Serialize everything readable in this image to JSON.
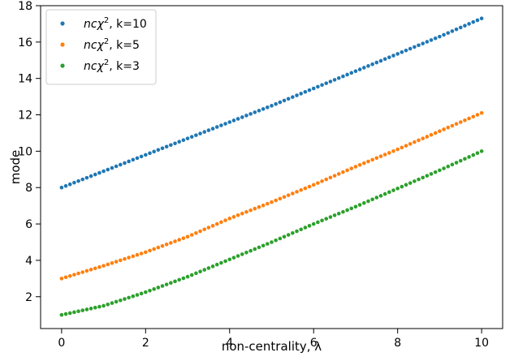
{
  "chart_data": {
    "type": "scatter",
    "xlabel": "non-centrality, λ",
    "ylabel": "mode",
    "xlim": [
      -0.5,
      10.5
    ],
    "ylim": [
      0.25,
      18
    ],
    "xticks": [
      0,
      2,
      4,
      6,
      8,
      10
    ],
    "yticks": [
      2,
      4,
      6,
      8,
      10,
      12,
      14,
      16,
      18
    ],
    "grid": false,
    "legend_position": "upper-left",
    "x": {
      "start": 0,
      "stop": 10,
      "count": 101
    },
    "series": [
      {
        "name": "ncχ², k=10",
        "legend_math": "ncχ",
        "legend_sup": "2",
        "legend_suffix": ", k=10",
        "color": "#1f77b4",
        "points": [
          [
            0,
            8.0
          ],
          [
            1,
            8.9
          ],
          [
            2,
            9.8
          ],
          [
            3,
            10.7
          ],
          [
            4,
            11.6
          ],
          [
            5,
            12.5
          ],
          [
            6,
            13.45
          ],
          [
            7,
            14.4
          ],
          [
            8,
            15.35
          ],
          [
            9,
            16.3
          ],
          [
            10,
            17.3
          ]
        ]
      },
      {
        "name": "ncχ², k=5",
        "legend_math": "ncχ",
        "legend_sup": "2",
        "legend_suffix": ", k=5",
        "color": "#ff7f0e",
        "points": [
          [
            0,
            3.0
          ],
          [
            1,
            3.7
          ],
          [
            2,
            4.45
          ],
          [
            3,
            5.3
          ],
          [
            4,
            6.3
          ],
          [
            5,
            7.2
          ],
          [
            6,
            8.15
          ],
          [
            7,
            9.15
          ],
          [
            8,
            10.1
          ],
          [
            9,
            11.1
          ],
          [
            10,
            12.1
          ]
        ]
      },
      {
        "name": "ncχ², k=3",
        "legend_math": "ncχ",
        "legend_sup": "2",
        "legend_suffix": ", k=3",
        "color": "#2ca02c",
        "points": [
          [
            0,
            1.0
          ],
          [
            1,
            1.5
          ],
          [
            2,
            2.25
          ],
          [
            3,
            3.1
          ],
          [
            4,
            4.05
          ],
          [
            5,
            5.0
          ],
          [
            6,
            6.0
          ],
          [
            7,
            6.95
          ],
          [
            8,
            7.95
          ],
          [
            9,
            8.95
          ],
          [
            10,
            10.0
          ]
        ]
      }
    ]
  }
}
